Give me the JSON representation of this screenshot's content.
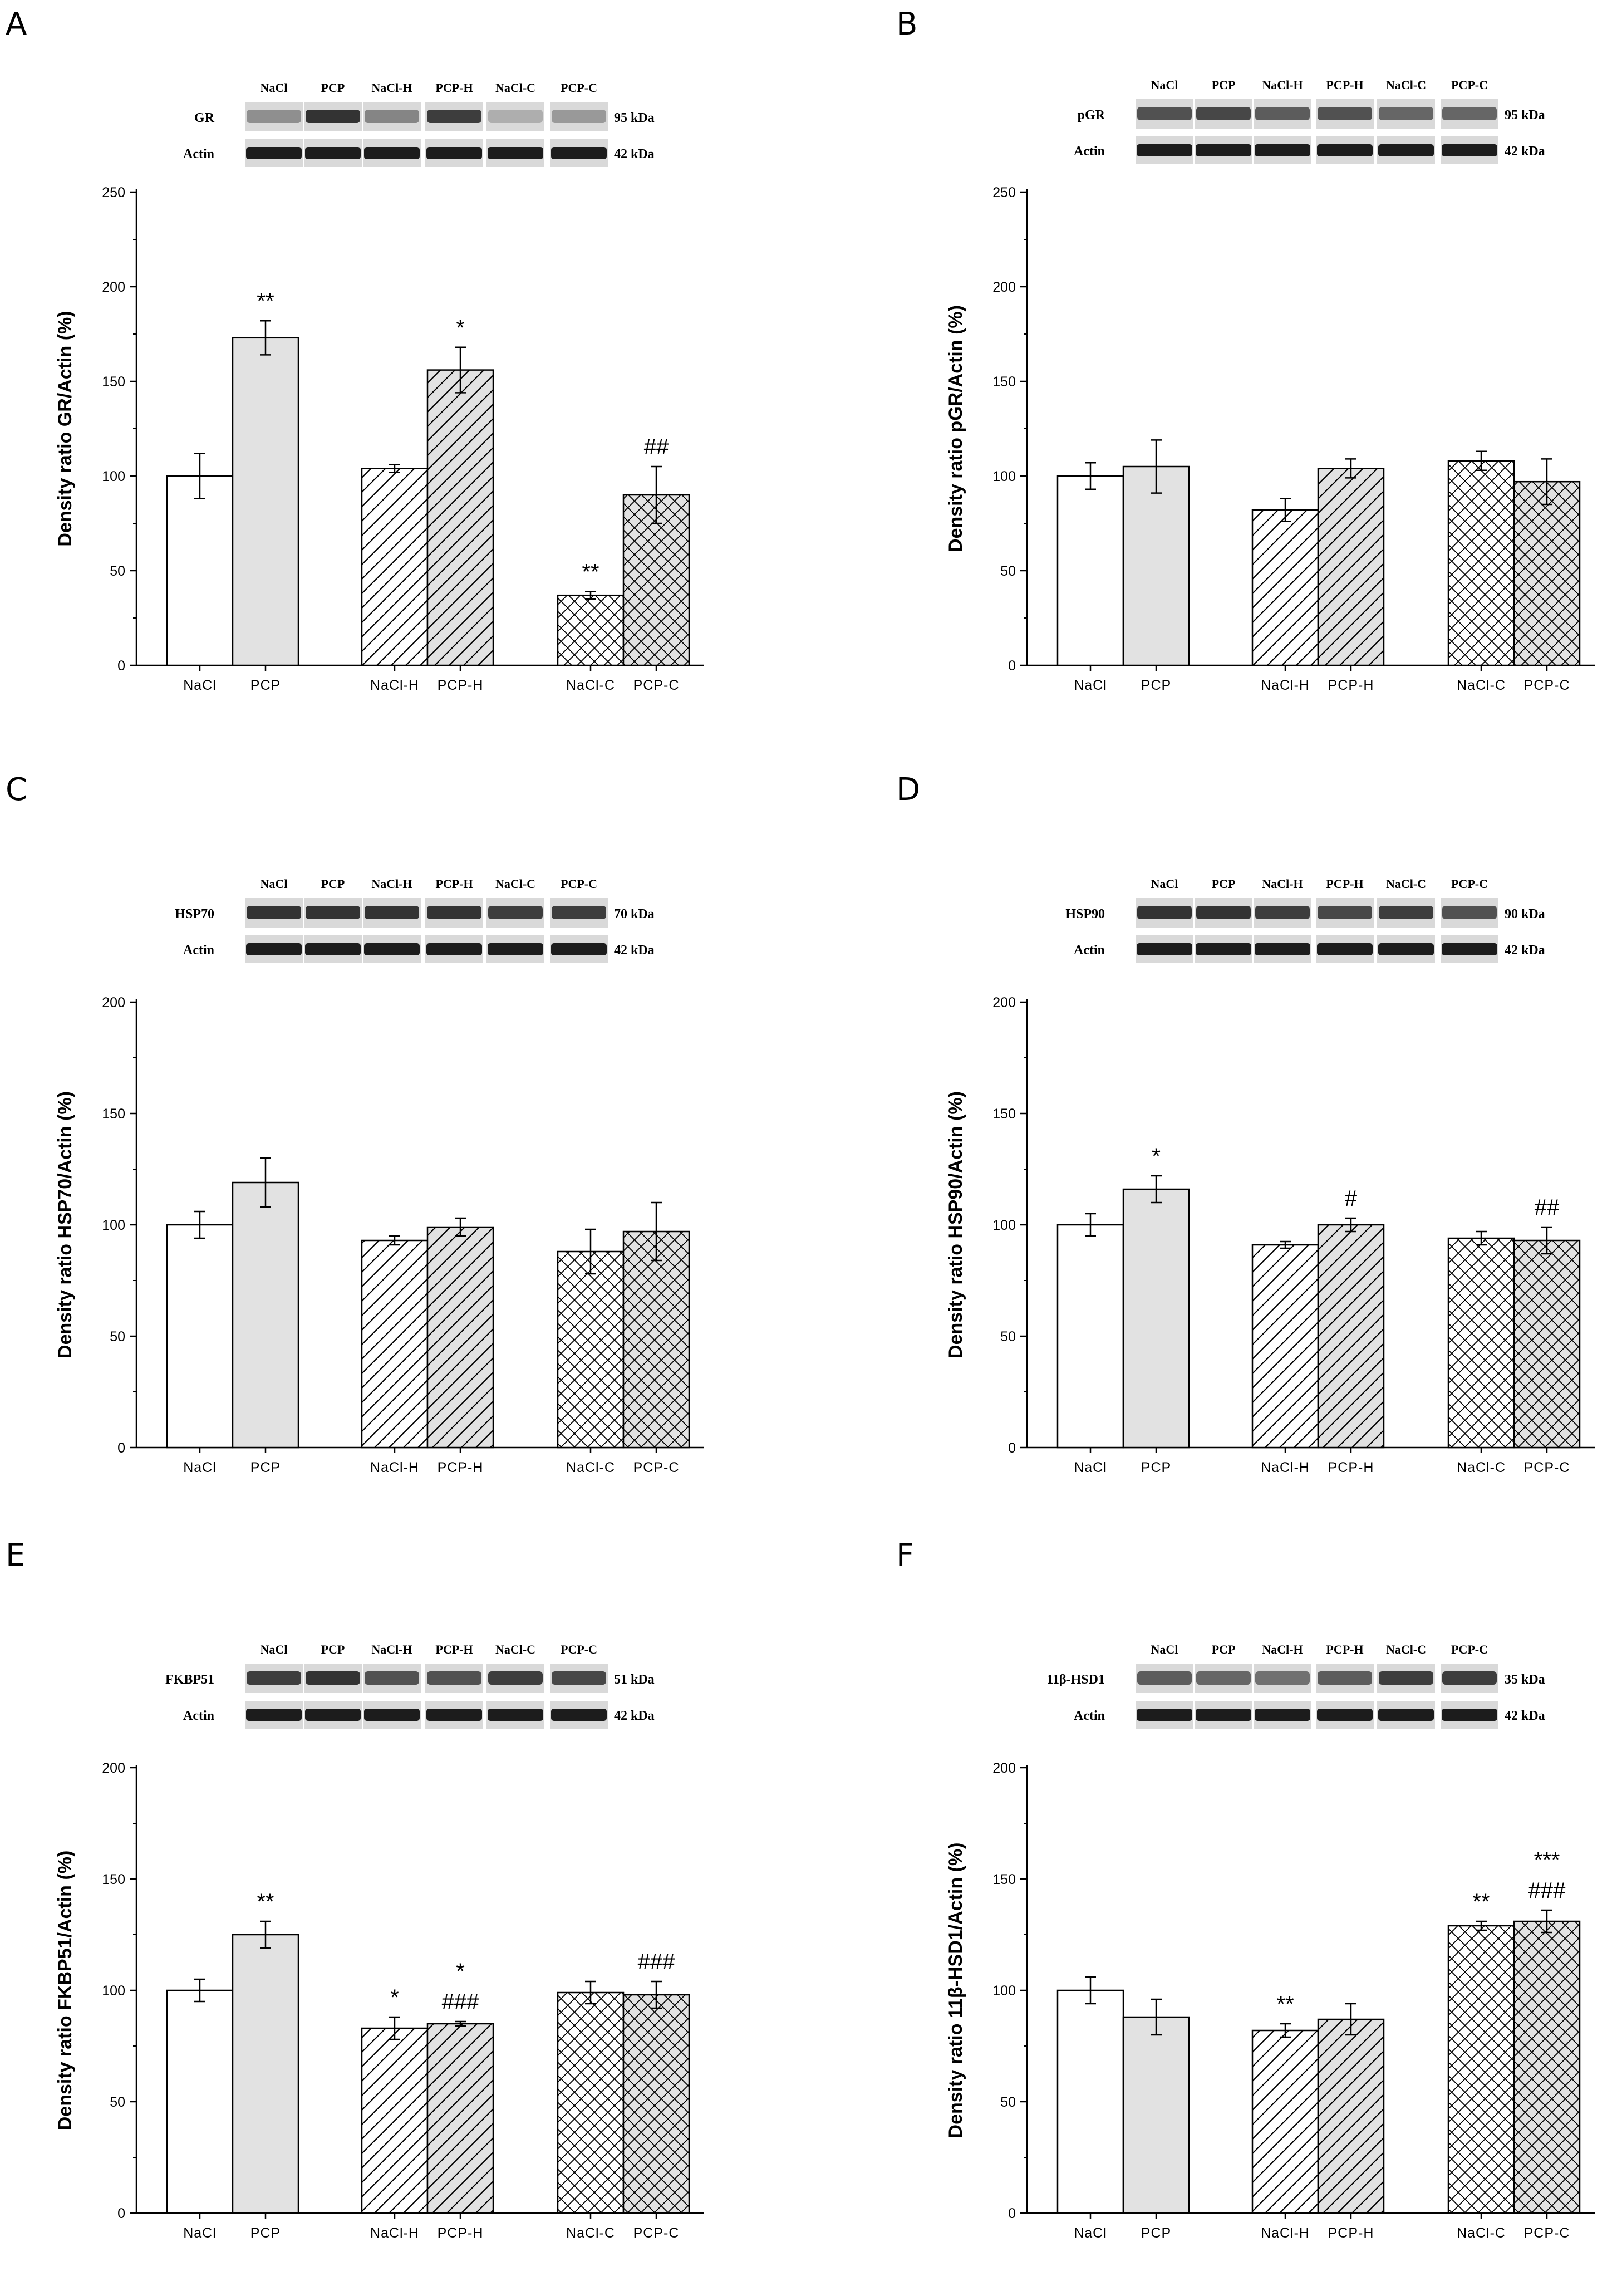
{
  "figure": {
    "lanes": [
      "NaCl",
      "PCP",
      "NaCl-H",
      "PCP-H",
      "NaCl-C",
      "PCP-C"
    ],
    "actin_label": "Actin",
    "actin_kda": "42 kDa",
    "patterns": {
      "NaCl": "solid-white",
      "PCP": "solid-gray",
      "NaCl-H": "diagonal-hatch",
      "PCP-H": "diagonal-hatch-gray",
      "NaCl-C": "cross-hatch",
      "PCP-C": "cross-hatch-gray"
    },
    "colors": {
      "bar_stroke": "#000000",
      "gray_fill": "#e2e2e2",
      "white_fill": "#ffffff",
      "blot_band": "#1c1c1c",
      "blot_bg": "#bdbdbd"
    }
  },
  "chart_data": [
    {
      "panel": "A",
      "type": "bar",
      "protein": "GR",
      "kda": "95 kDa",
      "ylabel": "Density ratio GR/Actin (%)",
      "ylim": [
        0,
        250
      ],
      "yticks": [
        0,
        50,
        100,
        150,
        200,
        250
      ],
      "categories": [
        "NaCl",
        "PCP",
        "NaCl-H",
        "PCP-H",
        "NaCl-C",
        "PCP-C"
      ],
      "tick_labels": [
        "NaCl",
        "PCP",
        "NaCl-H",
        "PCP-H",
        "NaCl-C",
        "PCP-C"
      ],
      "values": [
        100,
        173,
        104,
        156,
        37,
        90
      ],
      "errors": [
        12,
        9,
        2,
        12,
        2,
        15
      ],
      "annotations": [
        [
          "",
          ""
        ],
        [
          "**",
          ""
        ],
        [
          "",
          ""
        ],
        [
          "*",
          ""
        ],
        [
          "**",
          ""
        ],
        [
          "##",
          ""
        ]
      ],
      "band_intensity": [
        0.45,
        0.9,
        0.5,
        0.85,
        0.3,
        0.4
      ]
    },
    {
      "panel": "B",
      "type": "bar",
      "protein": "pGR",
      "kda": "95 kDa",
      "ylabel": "Density ratio pGR/Actin (%)",
      "ylim": [
        0,
        250
      ],
      "yticks": [
        0,
        50,
        100,
        150,
        200,
        250
      ],
      "categories": [
        "NaCl",
        "PCP",
        "NaCl-H",
        "PCP-H",
        "NaCl-C",
        "PCP-C"
      ],
      "tick_labels": [
        "NaCl",
        "PCP",
        "NaCl-H",
        "PCP-H",
        "NaCl-C",
        "PCP-C"
      ],
      "values": [
        100,
        105,
        82,
        104,
        108,
        97
      ],
      "errors": [
        7,
        14,
        6,
        5,
        5,
        12
      ],
      "annotations": [
        [
          "",
          ""
        ],
        [
          "",
          ""
        ],
        [
          "",
          ""
        ],
        [
          "",
          ""
        ],
        [
          "",
          ""
        ],
        [
          "",
          ""
        ]
      ],
      "band_intensity": [
        0.75,
        0.8,
        0.7,
        0.75,
        0.65,
        0.65
      ]
    },
    {
      "panel": "C",
      "type": "bar",
      "protein": "HSP70",
      "kda": "70 kDa",
      "ylabel": "Density ratio HSP70/Actin (%)",
      "ylim": [
        0,
        200
      ],
      "yticks": [
        0,
        50,
        100,
        150,
        200
      ],
      "categories": [
        "NaCl",
        "PCP",
        "NaCl-H",
        "PCP-H",
        "NaCl-C",
        "PCP-C"
      ],
      "tick_labels": [
        "NaCl",
        "PCP",
        "NaCl-H",
        "PCP-H",
        "NaCl-C",
        "PCP-C"
      ],
      "values": [
        100,
        119,
        93,
        99,
        88,
        97
      ],
      "errors": [
        6,
        11,
        2,
        4,
        10,
        13
      ],
      "annotations": [
        [
          "",
          ""
        ],
        [
          "",
          ""
        ],
        [
          "",
          ""
        ],
        [
          "",
          ""
        ],
        [
          "",
          ""
        ],
        [
          "",
          ""
        ]
      ],
      "band_intensity": [
        0.9,
        0.9,
        0.9,
        0.9,
        0.85,
        0.85
      ]
    },
    {
      "panel": "D",
      "type": "bar",
      "protein": "HSP90",
      "kda": "90 kDa",
      "ylabel": "Density ratio HSP90/Actin (%)",
      "ylim": [
        0,
        200
      ],
      "yticks": [
        0,
        50,
        100,
        150,
        200
      ],
      "categories": [
        "NaCl",
        "PCP",
        "NaCl-H",
        "PCP-H",
        "NaCl-C",
        "PCP-C"
      ],
      "tick_labels": [
        "NaCl",
        "PCP",
        "NaCl-H",
        "PCP-H",
        "NaCl-C",
        "PCP-C"
      ],
      "values": [
        100,
        116,
        91,
        100,
        94,
        93
      ],
      "errors": [
        5,
        6,
        1.5,
        3,
        3,
        6
      ],
      "annotations": [
        [
          "",
          ""
        ],
        [
          "*",
          ""
        ],
        [
          "",
          ""
        ],
        [
          "#",
          ""
        ],
        [
          "",
          ""
        ],
        [
          "##",
          ""
        ]
      ],
      "band_intensity": [
        0.9,
        0.9,
        0.85,
        0.8,
        0.85,
        0.75
      ]
    },
    {
      "panel": "E",
      "type": "bar",
      "protein": "FKBP51",
      "kda": "51 kDa",
      "ylabel": "Density ratio FKBP51/Actin (%)",
      "ylim": [
        0,
        200
      ],
      "yticks": [
        0,
        50,
        100,
        150,
        200
      ],
      "categories": [
        "NaCl",
        "PCP",
        "NaCl-H",
        "PCP-H",
        "NaCl-C",
        "PCP-C"
      ],
      "tick_labels": [
        "NaCl",
        "PCP",
        "NaCl-H",
        "PCP-H",
        "NaCl-C",
        "PCP-C"
      ],
      "values": [
        100,
        125,
        83,
        85,
        99,
        98
      ],
      "errors": [
        5,
        6,
        5,
        1,
        5,
        6
      ],
      "annotations": [
        [
          "",
          ""
        ],
        [
          "**",
          ""
        ],
        [
          "*",
          ""
        ],
        [
          "*",
          "###"
        ],
        [
          "",
          ""
        ],
        [
          "###",
          ""
        ]
      ],
      "band_intensity": [
        0.85,
        0.9,
        0.75,
        0.75,
        0.85,
        0.8
      ]
    },
    {
      "panel": "F",
      "type": "bar",
      "protein": "11β-HSD1",
      "kda": "35 kDa",
      "ylabel": "Density ratio 11β-HSD1/Actin (%)",
      "ylim": [
        0,
        200
      ],
      "yticks": [
        0,
        50,
        100,
        150,
        200
      ],
      "categories": [
        "NaCl",
        "PCP",
        "NaCl-H",
        "PCP-H",
        "NaCl-C",
        "PCP-C"
      ],
      "tick_labels": [
        "NaCl",
        "PCP",
        "NaCl-H",
        "PCP-H",
        "NaCl-C",
        "PCP-C"
      ],
      "values": [
        100,
        88,
        82,
        87,
        129,
        131
      ],
      "errors": [
        6,
        8,
        3,
        7,
        2,
        5
      ],
      "annotations": [
        [
          "",
          ""
        ],
        [
          "",
          ""
        ],
        [
          "**",
          ""
        ],
        [
          "",
          ""
        ],
        [
          "**",
          ""
        ],
        [
          "***",
          "###"
        ]
      ],
      "band_intensity": [
        0.7,
        0.65,
        0.6,
        0.7,
        0.85,
        0.85
      ]
    }
  ]
}
